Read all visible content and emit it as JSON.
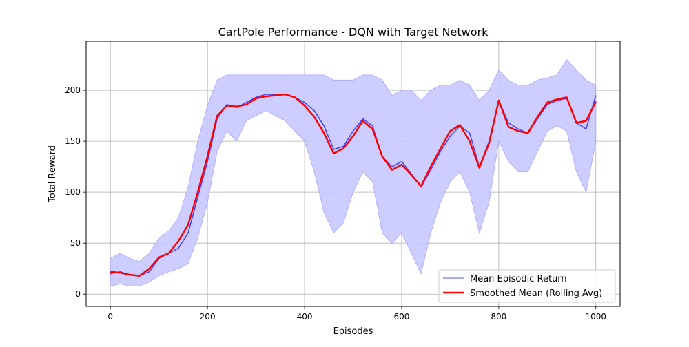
{
  "chart_data": {
    "type": "line",
    "title": "CartPole Performance - DQN with Target Network",
    "xlabel": "Episodes",
    "ylabel": "Total Reward",
    "xlim": [
      -50,
      1050
    ],
    "ylim": [
      -12,
      248
    ],
    "grid": true,
    "legend_position": "lower right",
    "xticks": [
      0,
      200,
      400,
      600,
      800,
      1000
    ],
    "yticks": [
      0,
      50,
      100,
      150,
      200
    ],
    "series": [
      {
        "name": "Mean Episodic Return",
        "color": "#4040ff",
        "band_color": "#c8c8ff",
        "x": [
          0,
          20,
          40,
          60,
          80,
          100,
          120,
          140,
          160,
          180,
          200,
          220,
          240,
          260,
          280,
          300,
          320,
          340,
          360,
          380,
          400,
          420,
          440,
          460,
          480,
          500,
          520,
          540,
          560,
          580,
          600,
          620,
          640,
          660,
          680,
          700,
          720,
          740,
          760,
          780,
          800,
          820,
          840,
          860,
          880,
          900,
          920,
          940,
          960,
          980,
          1000
        ],
        "values": [
          20,
          22,
          19,
          18,
          22,
          35,
          40,
          45,
          60,
          95,
          130,
          172,
          186,
          183,
          188,
          193,
          196,
          196,
          196,
          193,
          188,
          180,
          165,
          142,
          145,
          160,
          172,
          165,
          135,
          125,
          130,
          118,
          105,
          122,
          140,
          155,
          165,
          158,
          125,
          150,
          190,
          168,
          162,
          158,
          172,
          186,
          190,
          192,
          168,
          162,
          195
        ],
        "band_low": [
          8,
          10,
          8,
          8,
          12,
          18,
          22,
          25,
          30,
          55,
          90,
          140,
          160,
          150,
          170,
          175,
          180,
          175,
          170,
          160,
          150,
          120,
          80,
          60,
          70,
          100,
          120,
          110,
          60,
          50,
          60,
          40,
          20,
          60,
          90,
          110,
          120,
          100,
          60,
          90,
          150,
          130,
          120,
          120,
          140,
          160,
          165,
          160,
          120,
          100,
          150
        ],
        "band_high": [
          35,
          40,
          35,
          32,
          40,
          55,
          62,
          75,
          105,
          150,
          185,
          210,
          215,
          215,
          215,
          215,
          215,
          215,
          215,
          215,
          215,
          215,
          215,
          210,
          210,
          210,
          215,
          215,
          210,
          195,
          200,
          200,
          190,
          200,
          205,
          205,
          210,
          205,
          190,
          200,
          220,
          210,
          205,
          205,
          210,
          212,
          215,
          230,
          220,
          210,
          205
        ]
      },
      {
        "name": "Smoothed Mean (Rolling Avg)",
        "color": "#ff0000",
        "x": [
          0,
          20,
          40,
          60,
          80,
          100,
          120,
          140,
          160,
          180,
          200,
          220,
          240,
          260,
          280,
          300,
          320,
          340,
          360,
          380,
          400,
          420,
          440,
          460,
          480,
          500,
          520,
          540,
          560,
          580,
          600,
          620,
          640,
          660,
          680,
          700,
          720,
          740,
          760,
          780,
          800,
          820,
          840,
          860,
          880,
          900,
          920,
          940,
          960,
          980,
          1000
        ],
        "values": [
          22,
          21,
          19,
          18,
          25,
          36,
          40,
          52,
          68,
          100,
          135,
          175,
          185,
          184,
          186,
          192,
          194,
          195,
          196,
          193,
          185,
          174,
          158,
          138,
          143,
          155,
          170,
          162,
          135,
          122,
          127,
          117,
          106,
          125,
          143,
          160,
          166,
          150,
          124,
          148,
          190,
          164,
          160,
          158,
          174,
          188,
          191,
          193,
          168,
          170,
          189
        ]
      }
    ]
  }
}
